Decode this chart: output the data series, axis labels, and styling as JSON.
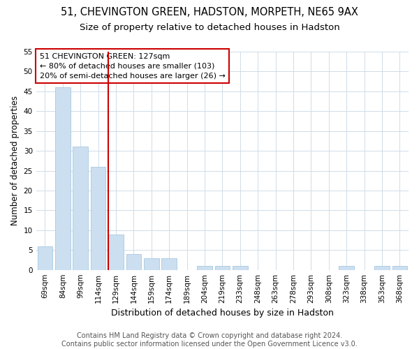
{
  "title1": "51, CHEVINGTON GREEN, HADSTON, MORPETH, NE65 9AX",
  "title2": "Size of property relative to detached houses in Hadston",
  "xlabel": "Distribution of detached houses by size in Hadston",
  "ylabel": "Number of detached properties",
  "categories": [
    "69sqm",
    "84sqm",
    "99sqm",
    "114sqm",
    "129sqm",
    "144sqm",
    "159sqm",
    "174sqm",
    "189sqm",
    "204sqm",
    "219sqm",
    "233sqm",
    "248sqm",
    "263sqm",
    "278sqm",
    "293sqm",
    "308sqm",
    "323sqm",
    "338sqm",
    "353sqm",
    "368sqm"
  ],
  "values": [
    6,
    46,
    31,
    26,
    9,
    4,
    3,
    3,
    0,
    1,
    1,
    1,
    0,
    0,
    0,
    0,
    0,
    1,
    0,
    1,
    1
  ],
  "bar_color": "#ccdff0",
  "bar_edge_color": "#a8c8e0",
  "vline_x_index": 4,
  "vline_color": "#cc0000",
  "annotation_text": "51 CHEVINGTON GREEN: 127sqm\n← 80% of detached houses are smaller (103)\n20% of semi-detached houses are larger (26) →",
  "annotation_box_color": "#ffffff",
  "annotation_box_edge_color": "#cc0000",
  "ylim": [
    0,
    55
  ],
  "yticks": [
    0,
    5,
    10,
    15,
    20,
    25,
    30,
    35,
    40,
    45,
    50,
    55
  ],
  "footer_text": "Contains HM Land Registry data © Crown copyright and database right 2024.\nContains public sector information licensed under the Open Government Licence v3.0.",
  "background_color": "#ffffff",
  "plot_background_color": "#ffffff",
  "grid_color": "#d0dce8",
  "title1_fontsize": 10.5,
  "title2_fontsize": 9.5,
  "annotation_fontsize": 8,
  "ylabel_fontsize": 8.5,
  "xlabel_fontsize": 9,
  "footer_fontsize": 7,
  "tick_fontsize": 7.5
}
